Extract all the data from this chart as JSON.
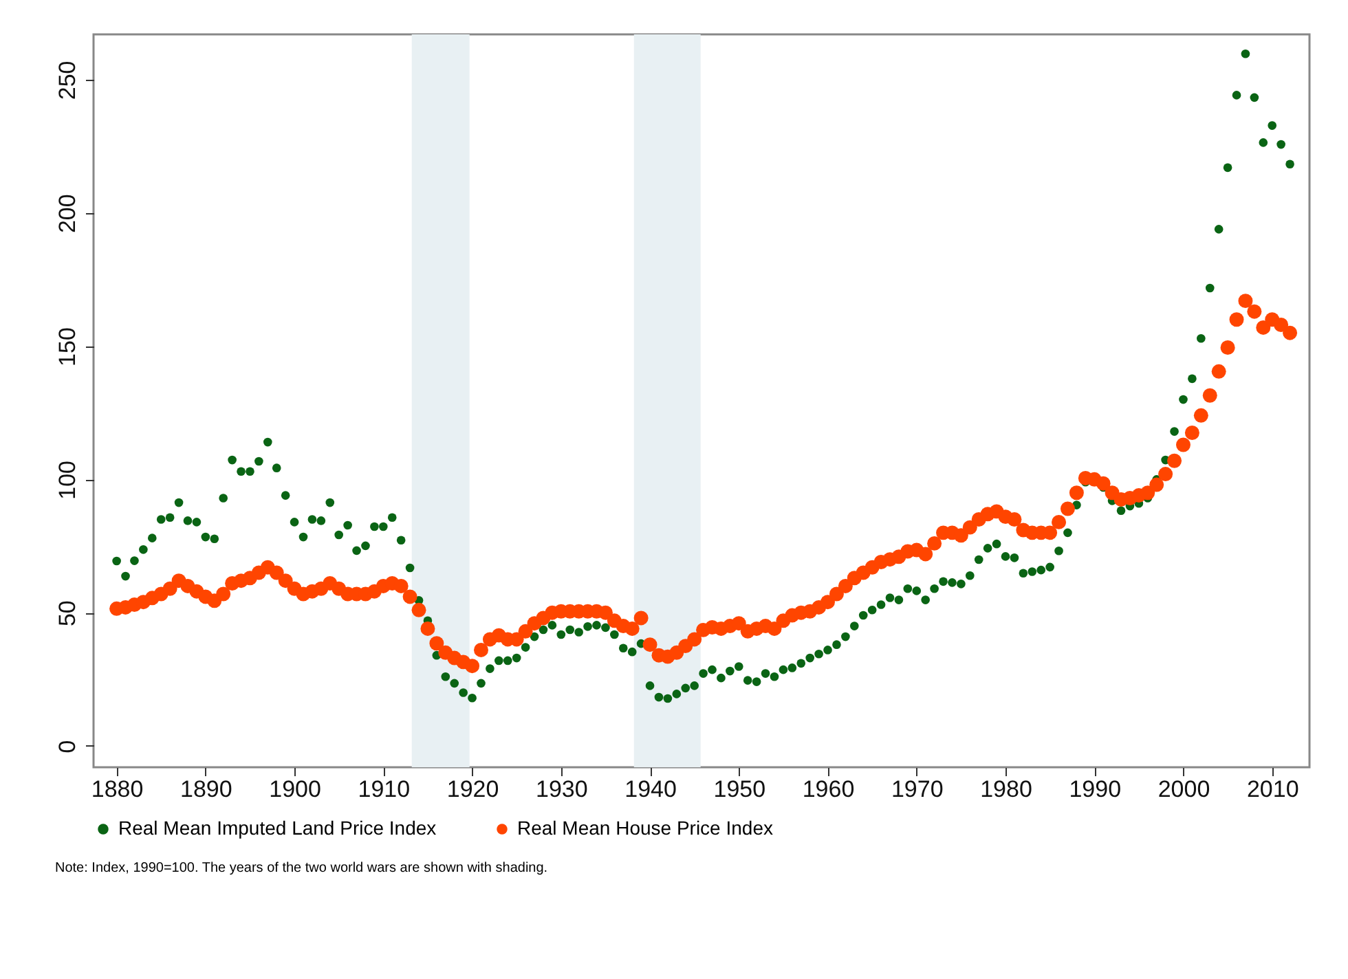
{
  "chart_data": {
    "type": "scatter",
    "marker": "circle",
    "legend": "bottom",
    "annotations": [
      "Note: Index, 1990=100. The years of the two world wars are shown with shading."
    ],
    "xlim": [
      1877.4,
      2014.2
    ],
    "xticks": [
      1880,
      1890,
      1900,
      1910,
      1920,
      1930,
      1940,
      1950,
      1960,
      1970,
      1980,
      1990,
      2000,
      2010
    ],
    "ylim": [
      -8,
      267
    ],
    "yticks": [
      0,
      50,
      100,
      150,
      200,
      250
    ],
    "bands": [
      {
        "axis": "x",
        "from": 1913.2,
        "to": 1919.7,
        "color": "#e8f0f3"
      },
      {
        "axis": "x",
        "from": 1938.2,
        "to": 1945.7,
        "color": "#e8f0f3"
      }
    ],
    "x": [
      1880,
      1881,
      1882,
      1883,
      1884,
      1885,
      1886,
      1887,
      1888,
      1889,
      1890,
      1891,
      1892,
      1893,
      1894,
      1895,
      1896,
      1897,
      1898,
      1899,
      1900,
      1901,
      1902,
      1903,
      1904,
      1905,
      1906,
      1907,
      1908,
      1909,
      1910,
      1911,
      1912,
      1913,
      1914,
      1915,
      1916,
      1917,
      1918,
      1919,
      1920,
      1921,
      1922,
      1923,
      1924,
      1925,
      1926,
      1927,
      1928,
      1929,
      1930,
      1931,
      1932,
      1933,
      1934,
      1935,
      1936,
      1937,
      1938,
      1939,
      1940,
      1941,
      1942,
      1943,
      1944,
      1945,
      1946,
      1947,
      1948,
      1949,
      1950,
      1951,
      1952,
      1953,
      1954,
      1955,
      1956,
      1957,
      1958,
      1959,
      1960,
      1961,
      1962,
      1963,
      1964,
      1965,
      1966,
      1967,
      1968,
      1969,
      1970,
      1971,
      1972,
      1973,
      1974,
      1975,
      1976,
      1977,
      1978,
      1979,
      1980,
      1981,
      1982,
      1983,
      1984,
      1985,
      1986,
      1987,
      1988,
      1989,
      1990,
      1991,
      1992,
      1993,
      1994,
      1995,
      1996,
      1997,
      1998,
      1999,
      2000,
      2001,
      2002,
      2003,
      2004,
      2005,
      2006,
      2007,
      2008,
      2009,
      2010,
      2011,
      2012
    ],
    "series": [
      {
        "name": "Real Mean Imputed Land Price Index",
        "color": "#0a6414",
        "values": [
          69.4,
          63.7,
          69.5,
          73.7,
          78,
          85,
          85.7,
          91.3,
          84.5,
          84,
          78.4,
          77.7,
          93,
          107.3,
          103,
          103,
          106.8,
          114,
          104.3,
          94,
          84,
          78.4,
          85,
          84.5,
          91.3,
          79.2,
          82.8,
          73.3,
          75.1,
          82.3,
          82.3,
          85.7,
          77.2,
          66.8,
          54.6,
          47,
          34,
          26,
          23.5,
          20,
          18,
          23.5,
          29,
          32,
          32,
          33,
          37,
          41,
          43.6,
          45.3,
          41.8,
          43.6,
          42.7,
          44.8,
          45.3,
          44.4,
          41.8,
          36.7,
          35.3,
          38.4,
          22.6,
          18.3,
          17.8,
          19.5,
          21.7,
          22.6,
          27.2,
          28.6,
          25.5,
          28.1,
          29.8,
          24.6,
          24.1,
          27.2,
          26,
          28.6,
          29.3,
          31,
          33,
          34.5,
          36,
          38,
          41,
          45,
          49,
          51,
          53,
          55.6,
          54.8,
          59,
          58.2,
          54.8,
          59,
          61.7,
          61.3,
          60.8,
          63.9,
          69.9,
          74.2,
          75.8,
          71.1,
          70.6,
          64.8,
          65.4,
          66,
          67.1,
          73.2,
          80,
          90.4,
          99,
          null,
          97,
          92,
          88.3,
          90,
          91,
          93,
          100,
          107.3,
          118,
          130,
          137.8,
          152.9,
          171.8,
          193.9,
          217,
          244.2,
          259.7,
          243.3,
          226.4,
          232.8,
          225.7,
          218.3
        ]
      },
      {
        "name": "Real Mean House Price Index",
        "color": "#ff4500",
        "values": [
          51.5,
          52,
          53,
          54,
          55.5,
          57,
          59,
          62,
          60,
          58,
          56,
          54.5,
          57,
          61,
          62,
          63,
          65,
          67,
          65,
          62,
          59,
          57,
          58,
          59,
          61,
          59,
          57,
          57,
          57,
          58,
          60,
          61,
          60,
          56,
          51,
          44,
          38.5,
          35,
          33,
          31.5,
          30,
          36,
          40,
          41.5,
          40,
          40,
          43,
          46,
          48,
          50,
          50.5,
          50.5,
          50.5,
          50.5,
          50.5,
          50,
          47,
          45,
          44,
          48,
          38,
          34,
          33.5,
          35,
          37.5,
          40,
          43.5,
          44.5,
          44,
          45,
          46,
          43,
          44,
          45,
          44,
          47,
          49,
          50,
          50.5,
          52,
          54,
          57,
          60,
          63,
          65,
          67,
          69,
          70,
          71,
          73,
          73.5,
          72,
          76,
          80,
          80,
          79,
          82,
          85,
          87,
          88,
          86,
          85,
          81,
          80,
          80,
          80,
          84,
          89,
          95,
          100.5,
          100,
          98.5,
          95,
          92.5,
          93,
          94,
          95,
          98,
          102,
          107,
          113,
          117.5,
          124,
          131.5,
          140.5,
          149.5,
          160,
          167,
          163,
          157,
          160,
          158,
          155
        ]
      }
    ]
  }
}
